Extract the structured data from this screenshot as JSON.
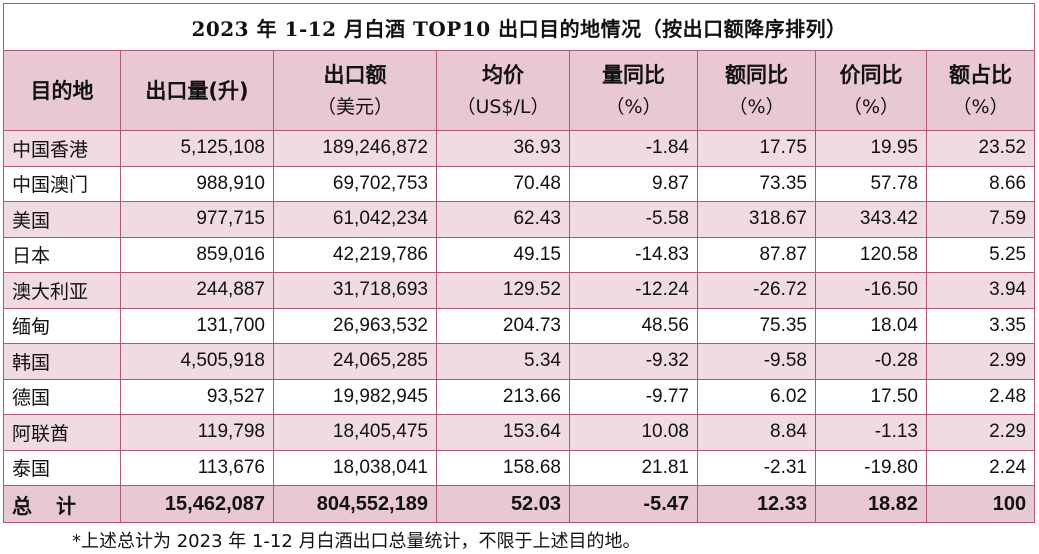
{
  "title": "2023 年 1-12 月白酒  TOP10 出口目的地情况（按出口额降序排列）",
  "headers": [
    {
      "main": "目的地",
      "sub": ""
    },
    {
      "main": "出口量(升)",
      "sub": ""
    },
    {
      "main": "出口额",
      "sub": "（美元）"
    },
    {
      "main": "均价",
      "sub": "（US$/L）"
    },
    {
      "main": "量同比",
      "sub": "（%）"
    },
    {
      "main": "额同比",
      "sub": "（%）"
    },
    {
      "main": "价同比",
      "sub": "（%）"
    },
    {
      "main": "额占比",
      "sub": "（%）"
    }
  ],
  "rows": [
    [
      "中国香港",
      "5,125,108",
      "189,246,872",
      "36.93",
      "-1.84",
      "17.75",
      "19.95",
      "23.52"
    ],
    [
      "中国澳门",
      "988,910",
      "69,702,753",
      "70.48",
      "9.87",
      "73.35",
      "57.78",
      "8.66"
    ],
    [
      "美国",
      "977,715",
      "61,042,234",
      "62.43",
      "-5.58",
      "318.67",
      "343.42",
      "7.59"
    ],
    [
      "日本",
      "859,016",
      "42,219,786",
      "49.15",
      "-14.83",
      "87.87",
      "120.58",
      "5.25"
    ],
    [
      "澳大利亚",
      "244,887",
      "31,718,693",
      "129.52",
      "-12.24",
      "-26.72",
      "-16.50",
      "3.94"
    ],
    [
      "缅甸",
      "131,700",
      "26,963,532",
      "204.73",
      "48.56",
      "75.35",
      "18.04",
      "3.35"
    ],
    [
      "韩国",
      "4,505,918",
      "24,065,285",
      "5.34",
      "-9.32",
      "-9.58",
      "-0.28",
      "2.99"
    ],
    [
      "德国",
      "93,527",
      "19,982,945",
      "213.66",
      "-9.77",
      "6.02",
      "17.50",
      "2.48"
    ],
    [
      "阿联酋",
      "119,798",
      "18,405,475",
      "153.64",
      "10.08",
      "8.84",
      "-1.13",
      "2.29"
    ],
    [
      "泰国",
      "113,676",
      "18,038,041",
      "158.68",
      "21.81",
      "-2.31",
      "-19.80",
      "2.24"
    ]
  ],
  "total": [
    "总计",
    "15,462,087",
    "804,552,189",
    "52.03",
    "-5.47",
    "12.33",
    "18.82",
    "100"
  ],
  "footnote": "*上述总计为 2023 年 1-12 月白酒出口总量统计，不限于上述目的地。",
  "colors": {
    "border": "#b05a72",
    "header_bg": "#e8c8d2",
    "shade_bg": "#efdbe1"
  }
}
